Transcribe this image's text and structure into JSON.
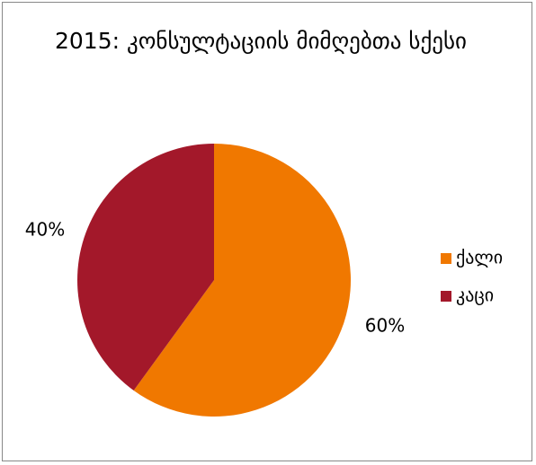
{
  "chart_data": {
    "type": "pie",
    "title": "2015: კონსულტაციის მიმღებთა სქესი",
    "categories": [
      "ქალი",
      "კაცი"
    ],
    "values": [
      60,
      40
    ],
    "value_labels": [
      "60%",
      "40%"
    ],
    "colors": [
      "#f07800",
      "#a3182a"
    ],
    "legend": "right"
  }
}
